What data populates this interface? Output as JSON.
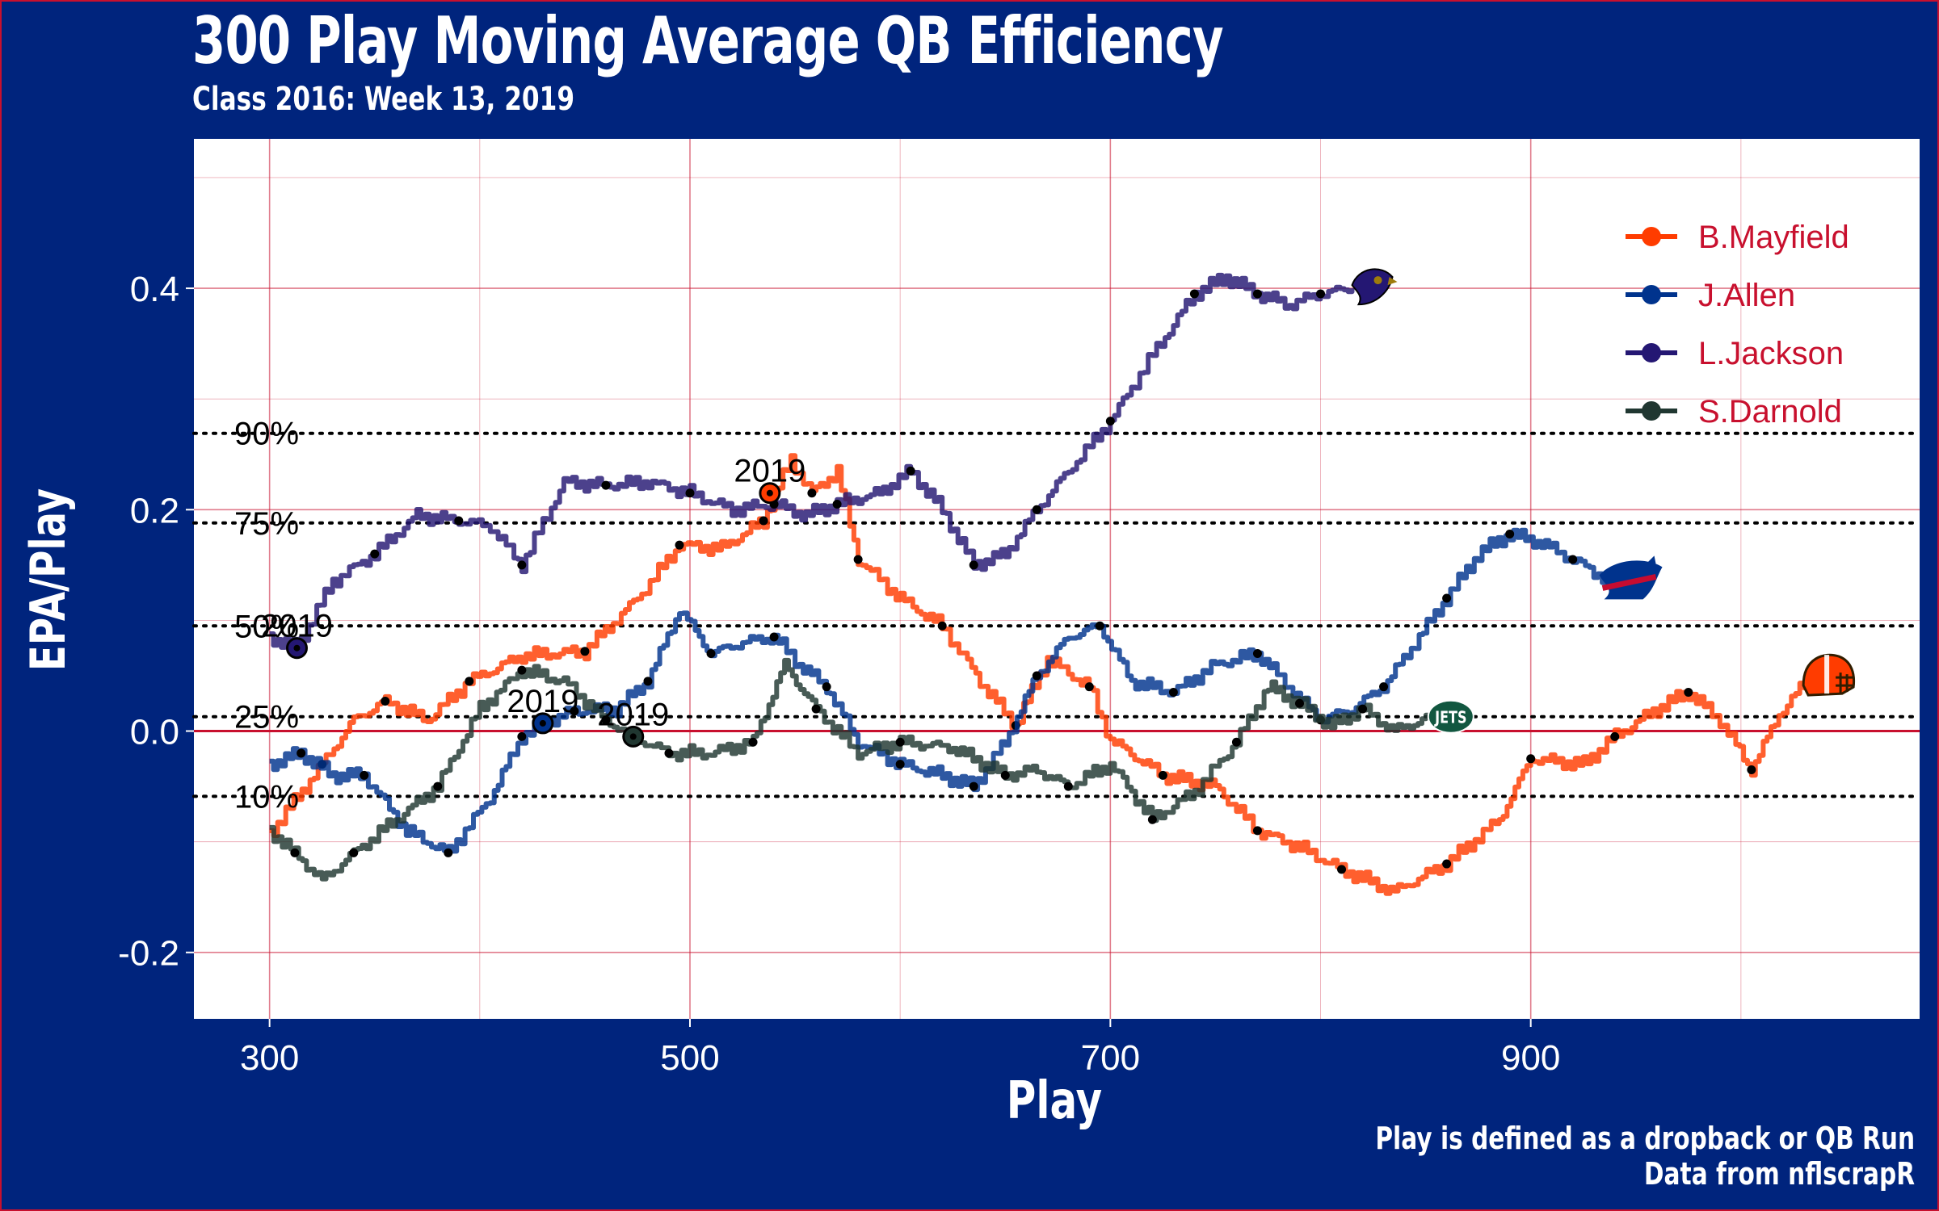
{
  "title": "300 Play Moving Average QB Efficiency",
  "subtitle": "Class 2016: Week 13, 2019",
  "caption": [
    "Play is defined as a dropback or QB Run",
    "Data from nflscrapR"
  ],
  "colors": {
    "background": "#00247d",
    "panel": "#ffffff",
    "gridline": "#c8102e",
    "zero_line": "#c8102e",
    "legend_text": "#c8102e",
    "percentile_line": "#000000"
  },
  "chart_data": {
    "type": "line",
    "xlabel": "Play",
    "ylabel": "EPA/Play",
    "xlim": [
      264,
      1085
    ],
    "ylim": [
      -0.26,
      0.535
    ],
    "xticks": [
      300,
      500,
      700,
      900
    ],
    "xtick_labels": [
      "300",
      "500",
      "700",
      "900"
    ],
    "yticks": [
      -0.2,
      0.0,
      0.2,
      0.4
    ],
    "ytick_labels": [
      "-0.2",
      "0.0",
      "0.2",
      "0.4"
    ],
    "grid": true,
    "legend_position": "top-right",
    "reference_lines": [
      {
        "label": "90%",
        "y": 0.269
      },
      {
        "label": "75%",
        "y": 0.188
      },
      {
        "label": "50%",
        "y": 0.095
      },
      {
        "label": "25%",
        "y": 0.013
      },
      {
        "label": "10%",
        "y": -0.059
      }
    ],
    "zero_line": 0.0,
    "series": [
      {
        "name": "B.Mayfield",
        "color": "#ff3c00",
        "logo": "browns-helmet-icon",
        "season_marker": {
          "label": "2019",
          "x": 538,
          "y": 0.215
        },
        "points": [
          [
            300,
            -0.093
          ],
          [
            325,
            -0.03
          ],
          [
            340,
            0.01
          ],
          [
            355,
            0.027
          ],
          [
            375,
            0.01
          ],
          [
            395,
            0.045
          ],
          [
            420,
            0.068
          ],
          [
            450,
            0.072
          ],
          [
            475,
            0.12
          ],
          [
            495,
            0.168
          ],
          [
            515,
            0.165
          ],
          [
            535,
            0.19
          ],
          [
            548,
            0.245
          ],
          [
            558,
            0.215
          ],
          [
            570,
            0.235
          ],
          [
            580,
            0.155
          ],
          [
            600,
            0.12
          ],
          [
            620,
            0.095
          ],
          [
            640,
            0.04
          ],
          [
            655,
            0.005
          ],
          [
            670,
            0.065
          ],
          [
            690,
            0.04
          ],
          [
            700,
            -0.008
          ],
          [
            725,
            -0.04
          ],
          [
            750,
            -0.05
          ],
          [
            770,
            -0.09
          ],
          [
            790,
            -0.105
          ],
          [
            810,
            -0.125
          ],
          [
            835,
            -0.145
          ],
          [
            860,
            -0.12
          ],
          [
            885,
            -0.08
          ],
          [
            900,
            -0.025
          ],
          [
            925,
            -0.03
          ],
          [
            940,
            -0.005
          ],
          [
            960,
            0.02
          ],
          [
            975,
            0.035
          ],
          [
            990,
            0.01
          ],
          [
            1005,
            -0.035
          ],
          [
            1018,
            0.015
          ],
          [
            1032,
            0.047
          ]
        ]
      },
      {
        "name": "J.Allen",
        "color": "#00338d",
        "logo": "bills-logo-icon",
        "season_marker": {
          "label": "2019",
          "x": 430,
          "y": 0.007
        },
        "points": [
          [
            300,
            -0.03
          ],
          [
            315,
            -0.02
          ],
          [
            330,
            -0.04
          ],
          [
            345,
            -0.04
          ],
          [
            365,
            -0.09
          ],
          [
            385,
            -0.11
          ],
          [
            405,
            -0.06
          ],
          [
            420,
            -0.005
          ],
          [
            430,
            0.007
          ],
          [
            445,
            0.018
          ],
          [
            465,
            0.02
          ],
          [
            480,
            0.045
          ],
          [
            495,
            0.11
          ],
          [
            510,
            0.07
          ],
          [
            525,
            0.08
          ],
          [
            540,
            0.085
          ],
          [
            552,
            0.06
          ],
          [
            565,
            0.04
          ],
          [
            580,
            -0.01
          ],
          [
            600,
            -0.03
          ],
          [
            620,
            -0.04
          ],
          [
            635,
            -0.05
          ],
          [
            650,
            -0.01
          ],
          [
            665,
            0.05
          ],
          [
            680,
            0.085
          ],
          [
            695,
            0.095
          ],
          [
            710,
            0.045
          ],
          [
            730,
            0.035
          ],
          [
            750,
            0.06
          ],
          [
            770,
            0.07
          ],
          [
            785,
            0.04
          ],
          [
            800,
            0.01
          ],
          [
            815,
            0.02
          ],
          [
            830,
            0.04
          ],
          [
            845,
            0.08
          ],
          [
            860,
            0.12
          ],
          [
            875,
            0.16
          ],
          [
            890,
            0.178
          ],
          [
            905,
            0.17
          ],
          [
            920,
            0.155
          ],
          [
            938,
            0.135
          ]
        ]
      },
      {
        "name": "L.Jackson",
        "color": "#241773",
        "logo": "ravens-logo-icon",
        "season_marker": {
          "label": "2019",
          "x": 313,
          "y": 0.075
        },
        "points": [
          [
            300,
            0.085
          ],
          [
            313,
            0.075
          ],
          [
            330,
            0.135
          ],
          [
            350,
            0.16
          ],
          [
            370,
            0.195
          ],
          [
            390,
            0.19
          ],
          [
            405,
            0.185
          ],
          [
            420,
            0.15
          ],
          [
            440,
            0.225
          ],
          [
            460,
            0.222
          ],
          [
            480,
            0.225
          ],
          [
            500,
            0.215
          ],
          [
            520,
            0.2
          ],
          [
            540,
            0.205
          ],
          [
            555,
            0.195
          ],
          [
            570,
            0.205
          ],
          [
            590,
            0.215
          ],
          [
            605,
            0.235
          ],
          [
            620,
            0.2
          ],
          [
            635,
            0.15
          ],
          [
            650,
            0.16
          ],
          [
            665,
            0.2
          ],
          [
            680,
            0.235
          ],
          [
            700,
            0.28
          ],
          [
            720,
            0.34
          ],
          [
            740,
            0.395
          ],
          [
            755,
            0.41
          ],
          [
            770,
            0.395
          ],
          [
            785,
            0.385
          ],
          [
            800,
            0.395
          ],
          [
            815,
            0.4
          ]
        ]
      },
      {
        "name": "S.Darnold",
        "color": "#203731",
        "logo": "jets-logo-icon",
        "season_marker": {
          "label": "2019",
          "x": 473,
          "y": -0.005
        },
        "points": [
          [
            300,
            -0.09
          ],
          [
            312,
            -0.11
          ],
          [
            325,
            -0.135
          ],
          [
            340,
            -0.11
          ],
          [
            360,
            -0.08
          ],
          [
            380,
            -0.05
          ],
          [
            400,
            0.02
          ],
          [
            420,
            0.055
          ],
          [
            440,
            0.045
          ],
          [
            460,
            0.01
          ],
          [
            473,
            -0.005
          ],
          [
            490,
            -0.02
          ],
          [
            510,
            -0.02
          ],
          [
            530,
            -0.01
          ],
          [
            545,
            0.06
          ],
          [
            560,
            0.02
          ],
          [
            580,
            -0.02
          ],
          [
            600,
            -0.01
          ],
          [
            625,
            -0.015
          ],
          [
            650,
            -0.04
          ],
          [
            665,
            -0.035
          ],
          [
            680,
            -0.05
          ],
          [
            700,
            -0.03
          ],
          [
            720,
            -0.08
          ],
          [
            740,
            -0.055
          ],
          [
            760,
            -0.01
          ],
          [
            775,
            0.04
          ],
          [
            790,
            0.025
          ],
          [
            805,
            0.005
          ],
          [
            820,
            0.02
          ],
          [
            835,
            0.0
          ],
          [
            852,
            0.013
          ]
        ]
      }
    ]
  }
}
